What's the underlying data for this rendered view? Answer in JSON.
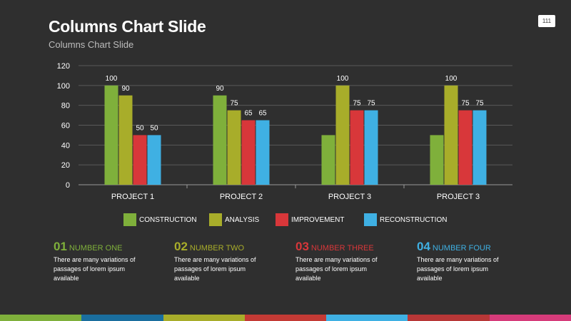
{
  "slide": {
    "title": "Columns Chart Slide",
    "subtitle": "Columns Chart Slide",
    "page_number": "111"
  },
  "colors": {
    "construction": "#7fb03b",
    "analysis": "#a8ad2a",
    "improvement": "#d8373a",
    "reconstruction": "#3fb0e3",
    "info1": "#7fb03b",
    "info2": "#a8ad2a",
    "info3": "#d8373a",
    "info4": "#3fb0e3"
  },
  "chart_data": {
    "type": "bar",
    "categories": [
      "PROJECT 1",
      "PROJECT 2",
      "PROJECT 3",
      "PROJECT 3"
    ],
    "series": [
      {
        "name": "CONSTRUCTION",
        "values": [
          100,
          90,
          50,
          50
        ],
        "labels": [
          "100",
          "90",
          "",
          ""
        ],
        "color": "#7fb03b"
      },
      {
        "name": "ANALYSIS",
        "values": [
          90,
          75,
          100,
          100
        ],
        "labels": [
          "90",
          "75",
          "100",
          "100"
        ],
        "color": "#a8ad2a"
      },
      {
        "name": "IMPROVEMENT",
        "values": [
          50,
          65,
          75,
          75
        ],
        "labels": [
          "50",
          "65",
          "75",
          "75"
        ],
        "color": "#d8373a"
      },
      {
        "name": "RECONSTRUCTION",
        "values": [
          50,
          65,
          75,
          75
        ],
        "labels": [
          "50",
          "65",
          "75",
          "75"
        ],
        "color": "#3fb0e3"
      }
    ],
    "yticks": [
      "0",
      "20",
      "40",
      "60",
      "80",
      "100",
      "120"
    ],
    "ylim": [
      0,
      120
    ],
    "grid": true,
    "legend": "bottom",
    "title": "",
    "xlabel": "",
    "ylabel": ""
  },
  "info": [
    {
      "num": "01",
      "title": "NUMBER ONE",
      "lines": [
        "There are many variations of",
        "passages of lorem ipsum",
        "available"
      ]
    },
    {
      "num": "02",
      "title": "NUMBER TWO",
      "lines": [
        "There are many variations of",
        "passages of lorem ipsum",
        "available"
      ]
    },
    {
      "num": "03",
      "title": "NUMBER THREE",
      "lines": [
        "There are many variations of",
        "passages of lorem ipsum",
        "available"
      ]
    },
    {
      "num": "04",
      "title": "NUMBER FOUR",
      "lines": [
        "There are many variations of",
        "passages of lorem ipsum",
        "available"
      ]
    }
  ],
  "bottom_bar_colors": [
    "#7fb03b",
    "#1a6e9e",
    "#a8ad2a",
    "#c43a35",
    "#3fb0e3",
    "#b83737",
    "#d63b7a"
  ]
}
